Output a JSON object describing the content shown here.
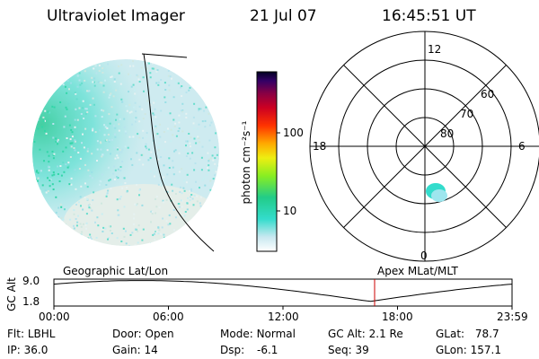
{
  "header": {
    "title": "Ultraviolet Imager",
    "date": "21 Jul 07",
    "time": "16:45:51 UT"
  },
  "colorbar": {
    "unit_label": "photon cm⁻²s⁻¹",
    "ticks": [
      "100",
      "10"
    ]
  },
  "polar_plot": {
    "mlt_labels": {
      "top": "12",
      "left": "18",
      "right": "6",
      "bottom": "0"
    },
    "lat_labels": [
      "60",
      "70",
      "80"
    ]
  },
  "timeline": {
    "left_label": "Geographic Lat/Lon",
    "right_label": "Apex MLat/MLT",
    "axis_label": "GC Alt",
    "y_ticks": [
      "9.0",
      "1.8"
    ],
    "x_ticks": [
      "00:00",
      "06:00",
      "12:00",
      "18:00",
      "23:59"
    ],
    "current_time_fraction": 0.7
  },
  "info": {
    "filter_label": "Flt:",
    "filter_value": "LBHL",
    "ip_label": "IP:",
    "ip_value": "36.0",
    "door_label": "Door:",
    "door_value": "Open",
    "gain_label": "Gain:",
    "gain_value": "14",
    "mode_label": "Mode:",
    "mode_value": "Normal",
    "dsp_label": "Dsp:",
    "dsp_value": "-6.1",
    "gcalt_label": "GC Alt:",
    "gcalt_value": "2.1 Re",
    "seq_label": "Seq:",
    "seq_value": "39",
    "glat_label": "GLat:",
    "glat_value": "78.7",
    "glon_label": "GLon:",
    "glon_value": "157.1"
  },
  "colors": {
    "accent_marker": "#cc0000",
    "aurora_teal": "#33dccc",
    "aurora_green": "#33cc88"
  }
}
